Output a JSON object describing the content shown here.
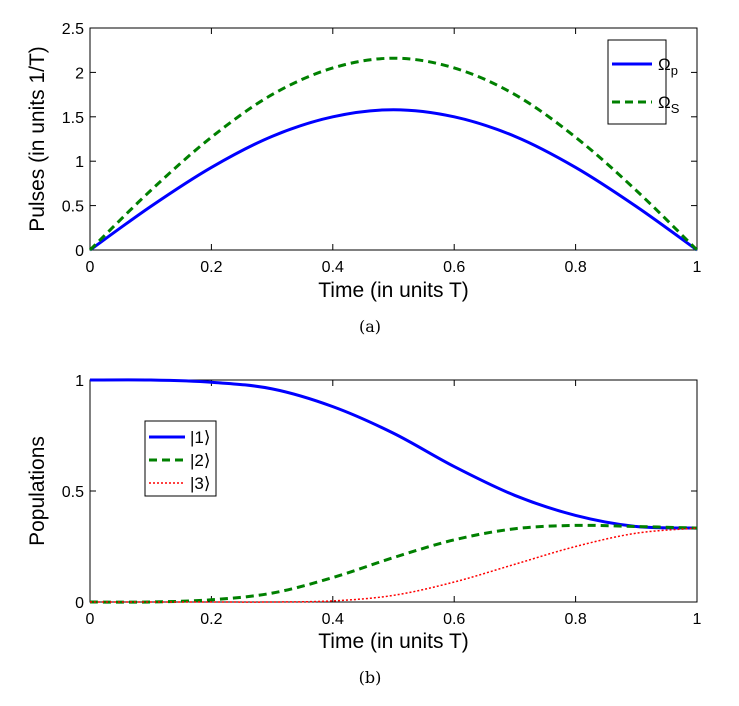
{
  "chart_data": [
    {
      "type": "line",
      "panel": "(a)",
      "caption": "(a)",
      "xlabel": "Time (in units T)",
      "ylabel": "Pulses (in units 1/T)",
      "xlim": [
        0,
        1
      ],
      "ylim": [
        0,
        2.5
      ],
      "xticks": [
        "0",
        "0.2",
        "0.4",
        "0.6",
        "0.8",
        "1"
      ],
      "yticks": [
        "0",
        "0.5",
        "1",
        "1.5",
        "2",
        "2.5"
      ],
      "legend_position": "top-right",
      "x": [
        0,
        0.1,
        0.2,
        0.3,
        0.4,
        0.5,
        0.6,
        0.7,
        0.8,
        0.9,
        1.0
      ],
      "series": [
        {
          "name": "Ω",
          "subscript": "p",
          "style": "solid",
          "color": "#0000ff",
          "values": [
            0,
            0.49,
            0.93,
            1.28,
            1.5,
            1.58,
            1.5,
            1.28,
            0.93,
            0.49,
            0
          ]
        },
        {
          "name": "Ω",
          "subscript": "S",
          "style": "dashed",
          "color": "#008000",
          "values": [
            0,
            0.67,
            1.27,
            1.75,
            2.05,
            2.16,
            2.05,
            1.75,
            1.27,
            0.67,
            0
          ]
        }
      ]
    },
    {
      "type": "line",
      "panel": "(b)",
      "caption": "(b)",
      "xlabel": "Time (in units T)",
      "ylabel": "Populations",
      "xlim": [
        0,
        1
      ],
      "ylim": [
        0,
        1
      ],
      "xticks": [
        "0",
        "0.2",
        "0.4",
        "0.6",
        "0.8",
        "1"
      ],
      "yticks": [
        "0",
        "0.5",
        "1"
      ],
      "legend_position": "middle-left",
      "x": [
        0,
        0.1,
        0.2,
        0.3,
        0.4,
        0.5,
        0.6,
        0.7,
        0.8,
        0.9,
        1.0
      ],
      "series": [
        {
          "name": "|1⟩",
          "style": "solid",
          "color": "#0000ff",
          "values": [
            1.0,
            1.0,
            0.99,
            0.96,
            0.88,
            0.76,
            0.61,
            0.48,
            0.39,
            0.34,
            0.333
          ]
        },
        {
          "name": "|2⟩",
          "style": "dashed",
          "color": "#008000",
          "values": [
            0,
            0,
            0.01,
            0.04,
            0.11,
            0.2,
            0.28,
            0.33,
            0.345,
            0.34,
            0.333
          ]
        },
        {
          "name": "|3⟩",
          "style": "dotted",
          "color": "#ff0000",
          "values": [
            0,
            0,
            0,
            0,
            0.005,
            0.03,
            0.09,
            0.17,
            0.25,
            0.31,
            0.333
          ]
        }
      ]
    }
  ]
}
